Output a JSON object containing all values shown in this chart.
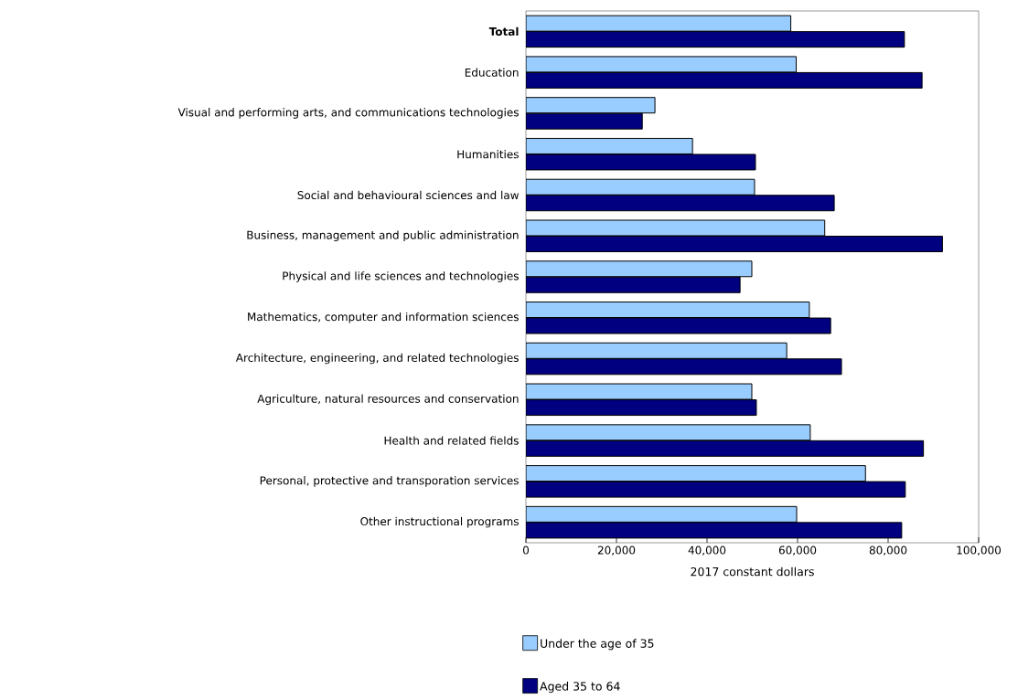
{
  "chart_data": {
    "type": "bar",
    "orientation": "horizontal",
    "xlabel": "2017 constant dollars",
    "categories": [
      "**Total**",
      "Education",
      "Visual and performing arts, and communications technologies",
      "Humanities",
      "Social and behavioural sciences and law",
      "Business, management and public administration",
      "Physical and life sciences and technologies",
      "Mathematics, computer and information sciences",
      "Architecture, engineering, and related technologies",
      "Agriculture, natural resources and conservation",
      "Health and related fields",
      "Personal, protective and transporation services",
      "Other instructional programs"
    ],
    "series": [
      {
        "name": "Under the age of 35",
        "color": "#99ccff",
        "values": [
          58500,
          59700,
          28500,
          36800,
          50500,
          66000,
          49900,
          62600,
          57600,
          49900,
          62800,
          75000,
          59800
        ]
      },
      {
        "name": "Aged 35 to 64",
        "color": "#000080",
        "values": [
          83600,
          87500,
          25700,
          50700,
          68100,
          92000,
          47300,
          67300,
          69700,
          50900,
          87800,
          83800,
          83000
        ]
      }
    ],
    "xlim": [
      0,
      100000
    ],
    "xticks": [
      0,
      {
        "value": 20000,
        "label": "20,000"
      },
      {
        "value": 40000,
        "label": "40,000"
      },
      {
        "value": 60000,
        "label": "60,000"
      },
      {
        "value": 80000,
        "label": "80,000"
      },
      {
        "value": 100000,
        "label": "100,000"
      }
    ],
    "grid": false,
    "legend": "bottom"
  }
}
